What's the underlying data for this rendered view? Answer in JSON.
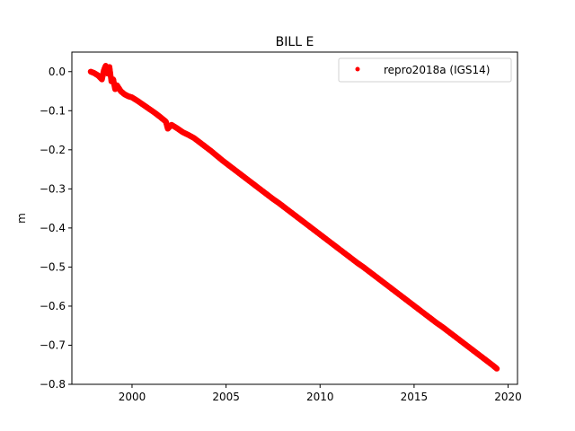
{
  "chart_data": {
    "type": "scatter",
    "title": "BILL E",
    "xlabel": "",
    "ylabel": "m",
    "xlim": [
      1996.8,
      2020.5
    ],
    "ylim": [
      -0.8,
      0.05
    ],
    "xticks": [
      2000,
      2005,
      2010,
      2015,
      2020
    ],
    "xtick_labels": [
      "2000",
      "2005",
      "2010",
      "2015",
      "2020"
    ],
    "yticks": [
      0.0,
      -0.1,
      -0.2,
      -0.3,
      -0.4,
      -0.5,
      -0.6,
      -0.7,
      -0.8
    ],
    "ytick_labels": [
      "0.0",
      "−0.1",
      "−0.2",
      "−0.3",
      "−0.4",
      "−0.5",
      "−0.6",
      "−0.7",
      "−0.8"
    ],
    "grid": false,
    "legend_position": "top-right",
    "series": [
      {
        "name": "repro2018a (IGS14)",
        "color": "#ff0000",
        "marker": "circle",
        "x": [
          1997.8,
          1998.0,
          1998.2,
          1998.4,
          1998.5,
          1998.6,
          1998.7,
          1998.8,
          1998.9,
          1999.0,
          1999.1,
          1999.2,
          1999.4,
          1999.6,
          1999.8,
          2000.0,
          2000.3,
          2000.6,
          2000.9,
          2001.2,
          2001.5,
          2001.8,
          2001.9,
          2002.1,
          2002.4,
          2002.7,
          2003.0,
          2003.3,
          2003.6,
          2003.9,
          2004.2,
          2004.5,
          2004.8,
          2005.1,
          2005.4,
          2005.7,
          2006.0,
          2006.3,
          2006.6,
          2006.9,
          2007.2,
          2007.5,
          2007.8,
          2008.1,
          2008.4,
          2008.7,
          2009.0,
          2009.3,
          2009.6,
          2009.9,
          2010.2,
          2010.5,
          2010.8,
          2011.1,
          2011.4,
          2011.7,
          2012.0,
          2012.3,
          2012.6,
          2012.9,
          2013.2,
          2013.5,
          2013.8,
          2014.1,
          2014.4,
          2014.7,
          2015.0,
          2015.3,
          2015.6,
          2015.9,
          2016.2,
          2016.5,
          2016.8,
          2017.1,
          2017.4,
          2017.7,
          2018.0,
          2018.3,
          2018.6,
          2018.9,
          2019.2,
          2019.4
        ],
        "y": [
          0.0,
          -0.004,
          -0.01,
          -0.02,
          0.003,
          0.015,
          -0.005,
          0.012,
          -0.025,
          -0.02,
          -0.045,
          -0.035,
          -0.05,
          -0.058,
          -0.063,
          -0.066,
          -0.075,
          -0.085,
          -0.095,
          -0.105,
          -0.116,
          -0.128,
          -0.146,
          -0.136,
          -0.145,
          -0.155,
          -0.162,
          -0.17,
          -0.181,
          -0.192,
          -0.203,
          -0.215,
          -0.227,
          -0.238,
          -0.249,
          -0.26,
          -0.271,
          -0.282,
          -0.293,
          -0.304,
          -0.315,
          -0.326,
          -0.336,
          -0.347,
          -0.358,
          -0.369,
          -0.38,
          -0.391,
          -0.402,
          -0.413,
          -0.424,
          -0.435,
          -0.446,
          -0.457,
          -0.468,
          -0.479,
          -0.49,
          -0.5,
          -0.511,
          -0.522,
          -0.533,
          -0.544,
          -0.555,
          -0.566,
          -0.577,
          -0.588,
          -0.599,
          -0.61,
          -0.621,
          -0.632,
          -0.643,
          -0.653,
          -0.664,
          -0.675,
          -0.686,
          -0.697,
          -0.708,
          -0.719,
          -0.73,
          -0.741,
          -0.752,
          -0.76
        ]
      }
    ]
  }
}
